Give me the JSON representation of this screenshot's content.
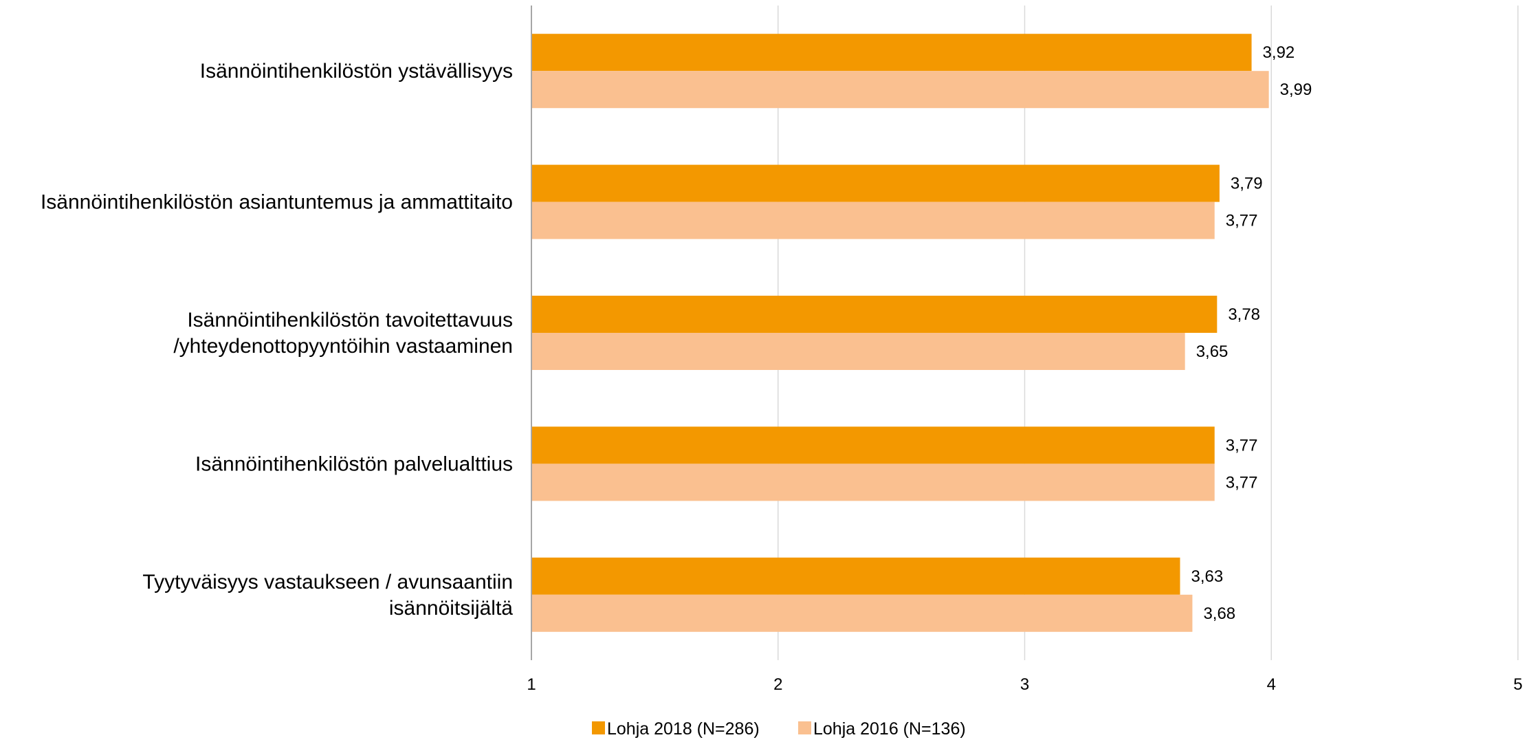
{
  "chart_data": {
    "type": "bar",
    "orientation": "horizontal",
    "categories": [
      [
        "Isännöintihenkilöstön ystävällisyys"
      ],
      [
        "Isännöintihenkilöstön asiantuntemus ja ammattitaito"
      ],
      [
        "Isännöintihenkilöstön tavoitettavuus",
        "/yhteydenottopyyntöihin vastaaminen"
      ],
      [
        "Isännöintihenkilöstön palvelualttius"
      ],
      [
        "Tyytyväisyys vastaukseen / avunsaantiin",
        "isännöitsijältä"
      ]
    ],
    "series": [
      {
        "name": "Lohja 2018 (N=286)",
        "color": "#F39800",
        "values": [
          3.92,
          3.79,
          3.78,
          3.77,
          3.63
        ],
        "labels": [
          "3,92",
          "3,79",
          "3,78",
          "3,77",
          "3,63"
        ]
      },
      {
        "name": "Lohja 2016 (N=136)",
        "color": "#FAC090",
        "values": [
          3.99,
          3.77,
          3.65,
          3.77,
          3.68
        ],
        "labels": [
          "3,99",
          "3,77",
          "3,65",
          "3,77",
          "3,68"
        ]
      }
    ],
    "xlim": [
      1,
      5
    ],
    "xticks": [
      "1",
      "2",
      "3",
      "4",
      "5"
    ],
    "grid": true,
    "legend_position": "bottom"
  }
}
